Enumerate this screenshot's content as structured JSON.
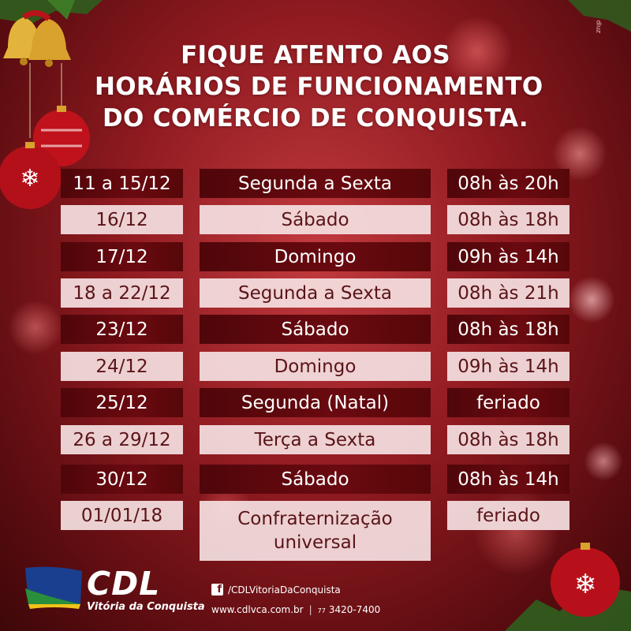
{
  "title": {
    "line1": "FIQUE ATENTO AOS",
    "line2": "HORÁRIOS DE FUNCIONAMENTO",
    "line3": "DO COMÉRCIO DE CONQUISTA."
  },
  "credit": "dluz",
  "schedule": [
    {
      "date": "11 a 15/12",
      "day": "Segunda a Sexta",
      "hours": "08h às 20h"
    },
    {
      "date": "16/12",
      "day": "Sábado",
      "hours": "08h às 18h"
    },
    {
      "date": "17/12",
      "day": "Domingo",
      "hours": "09h às 14h"
    },
    {
      "date": "18 a 22/12",
      "day": "Segunda a Sexta",
      "hours": "08h às 21h"
    },
    {
      "date": "23/12",
      "day": "Sábado",
      "hours": "08h às 18h"
    },
    {
      "date": "24/12",
      "day": "Domingo",
      "hours": "09h às 14h"
    },
    {
      "date": "25/12",
      "day": "Segunda (Natal)",
      "hours": "feriado"
    },
    {
      "date": "26 a 29/12",
      "day": "Terça a Sexta",
      "hours": "08h às 18h"
    },
    {
      "date": "30/12",
      "day": "Sábado",
      "hours": "08h às 14h"
    },
    {
      "date": "01/01/18",
      "day": "Confraternização universal",
      "hours": "feriado"
    }
  ],
  "footer": {
    "logo_text": "CDL",
    "logo_sub": "Vitória da Conquista",
    "facebook_icon": "f",
    "facebook": "/CDLVitoriaDaConquista",
    "website": "www.cdlvca.com.br",
    "separator": "|",
    "area_code": "77",
    "phone": "3420-7400"
  },
  "colors": {
    "background": "#8e1a20",
    "dark_cell": "#5e080d",
    "light_cell": "#f5e1e2",
    "text_light": "#ffffff",
    "text_dark": "#5a1418"
  }
}
